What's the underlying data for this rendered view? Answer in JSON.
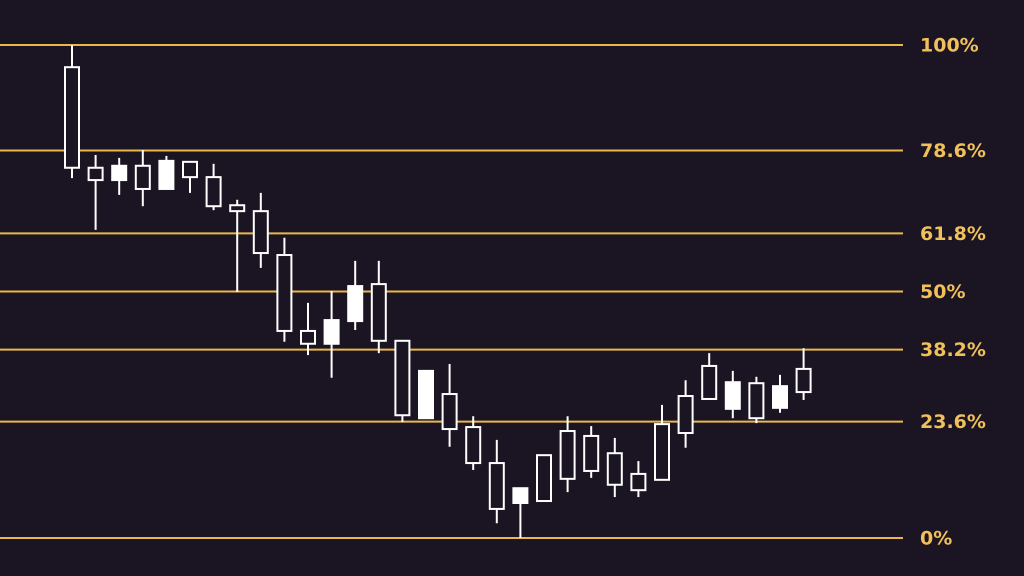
{
  "chart_data": {
    "type": "candlestick",
    "open": [
      75.1,
      72.6,
      75.5,
      70.8,
      76.5,
      73.2,
      67.3,
      66.3,
      57.8,
      42.0,
      39.4,
      44.2,
      51.1,
      40.0,
      24.9,
      33.9,
      22.1,
      15.2,
      5.9,
      10.1,
      7.5,
      12.0,
      13.6,
      10.8,
      9.7,
      11.8,
      21.3,
      28.2,
      31.6,
      24.3,
      30.8,
      29.6
    ],
    "high": [
      100,
      77.7,
      77.1,
      78.7,
      77.5,
      76.3,
      75.9,
      68.6,
      70.0,
      60.9,
      47.7,
      50.1,
      56.2,
      56.2,
      40.0,
      33.9,
      35.3,
      24.7,
      19.9,
      10.1,
      16.8,
      24.7,
      22.7,
      20.3,
      15.6,
      27.0,
      32.0,
      37.5,
      33.9,
      32.7,
      33.1,
      38.5
    ],
    "low": [
      73.0,
      62.5,
      69.6,
      67.3,
      70.8,
      70.0,
      66.5,
      49.9,
      54.8,
      39.8,
      37.1,
      32.5,
      42.2,
      37.5,
      23.5,
      24.3,
      18.5,
      13.8,
      3.0,
      0,
      7.3,
      9.3,
      12.2,
      8.3,
      8.3,
      11.8,
      18.3,
      28.2,
      24.3,
      23.3,
      25.4,
      28.0
    ],
    "close": [
      95.5,
      75.1,
      72.6,
      75.5,
      70.8,
      76.3,
      73.2,
      67.5,
      66.3,
      57.4,
      42.0,
      39.4,
      44.0,
      51.5,
      40.0,
      24.3,
      29.2,
      22.5,
      15.2,
      7.1,
      16.8,
      21.7,
      20.7,
      17.2,
      13.0,
      23.1,
      28.8,
      34.9,
      26.2,
      31.4,
      26.4,
      34.3
    ],
    "up_color": "#1b1423",
    "down_color": "#ffffff",
    "wick_color": "#ffffff",
    "level_color": "#e8b84a",
    "ylim": [
      0,
      100
    ],
    "yticks": [
      {
        "value": 0,
        "label": "0%"
      },
      {
        "value": 23.6,
        "label": "23.6%"
      },
      {
        "value": 38.2,
        "label": "38.2%"
      },
      {
        "value": 50,
        "label": "50%"
      },
      {
        "value": 61.8,
        "label": "61.8%"
      },
      {
        "value": 78.6,
        "label": "78.6%"
      },
      {
        "value": 100,
        "label": "100%"
      }
    ],
    "grid": true
  }
}
